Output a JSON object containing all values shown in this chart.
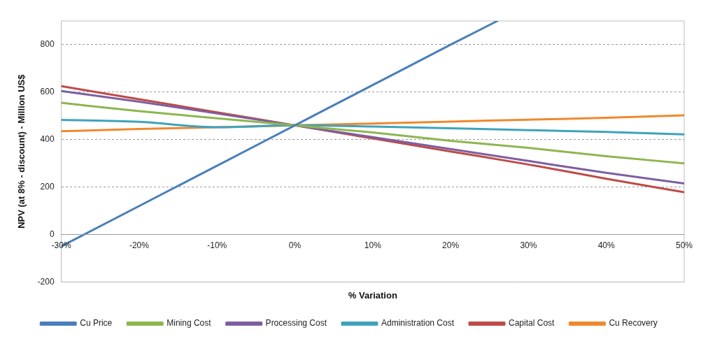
{
  "chart_data": {
    "type": "line",
    "xlabel": "% Variation",
    "ylabel": "NPV (at 8% - discount) - Million US$",
    "x": [
      -30,
      -20,
      -10,
      0,
      10,
      20,
      30,
      40,
      50
    ],
    "xlim": [
      -30,
      50
    ],
    "xticks": [
      {
        "value": -30,
        "label": "-30%"
      },
      {
        "value": -20,
        "label": "-20%"
      },
      {
        "value": -10,
        "label": "-10%"
      },
      {
        "value": 0,
        "label": "0%"
      },
      {
        "value": 10,
        "label": "10%"
      },
      {
        "value": 20,
        "label": "20%"
      },
      {
        "value": 30,
        "label": "30%"
      },
      {
        "value": 40,
        "label": "40%"
      },
      {
        "value": 50,
        "label": "50%"
      }
    ],
    "ylim": [
      -200,
      900
    ],
    "yticks": [
      -200,
      0,
      200,
      400,
      600,
      800
    ],
    "grid": "y",
    "legend": "bottom",
    "marker": "none",
    "line_style": "solid",
    "series": [
      {
        "name": "Cu Price",
        "color": "#4a7ebb",
        "x": [
          -30,
          -20,
          -10,
          0,
          10,
          20,
          26
        ],
        "values": [
          -50,
          120,
          290,
          460,
          630,
          800,
          900
        ]
      },
      {
        "name": "Mining Cost",
        "color": "#8db64f",
        "values": [
          555,
          520,
          490,
          460,
          430,
          395,
          365,
          330,
          300
        ]
      },
      {
        "name": "Processing Cost",
        "color": "#7d5fa0",
        "values": [
          605,
          560,
          510,
          460,
          410,
          360,
          310,
          260,
          215
        ]
      },
      {
        "name": "Administration Cost",
        "color": "#3fa3bb",
        "values": [
          483,
          475,
          452,
          460,
          455,
          448,
          440,
          432,
          422
        ]
      },
      {
        "name": "Capital Cost",
        "color": "#be4b48",
        "values": [
          625,
          570,
          515,
          460,
          405,
          350,
          295,
          235,
          178
        ]
      },
      {
        "name": "Cu Recovery",
        "color": "#f0882f",
        "values": [
          435,
          445,
          452,
          460,
          468,
          476,
          484,
          492,
          502
        ]
      }
    ]
  }
}
